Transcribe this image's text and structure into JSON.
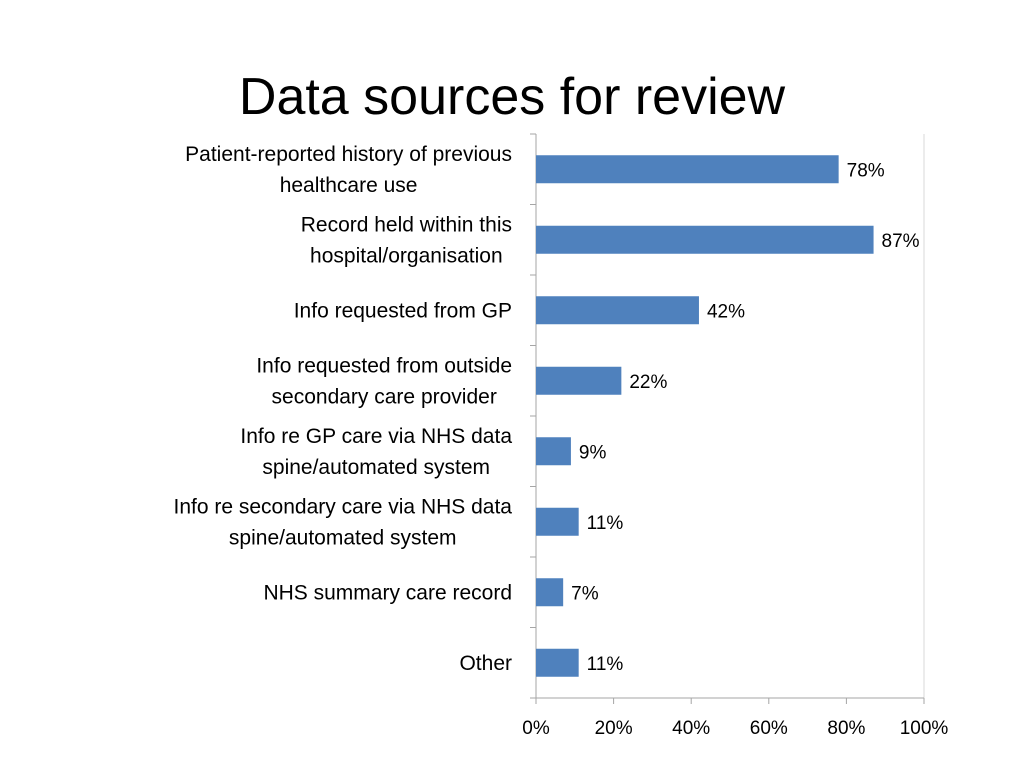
{
  "slide": {
    "title": "Data sources for review"
  },
  "chart_data": {
    "type": "bar",
    "orientation": "horizontal",
    "categories": [
      [
        "Patient-reported history of previous",
        "healthcare use"
      ],
      [
        "Record held within this",
        "hospital/organisation"
      ],
      [
        "Info requested from GP"
      ],
      [
        "Info requested from outside",
        "secondary care provider"
      ],
      [
        "Info re GP care via NHS data",
        "spine/automated system"
      ],
      [
        "Info re secondary care via NHS data",
        "spine/automated system"
      ],
      [
        "NHS summary care record"
      ],
      [
        "Other"
      ]
    ],
    "values": [
      78,
      87,
      42,
      22,
      9,
      11,
      7,
      11
    ],
    "data_labels": [
      "78%",
      "87%",
      "42%",
      "22%",
      "9%",
      "11%",
      "7%",
      "11%"
    ],
    "xlim": [
      0,
      100
    ],
    "xticks": [
      0,
      20,
      40,
      60,
      80,
      100
    ],
    "xtick_labels": [
      "0%",
      "20%",
      "40%",
      "60%",
      "80%",
      "100%"
    ],
    "grid": false,
    "bar_color": "#4F81BD",
    "axis_color": "#A6A6A6",
    "legend": "none"
  }
}
